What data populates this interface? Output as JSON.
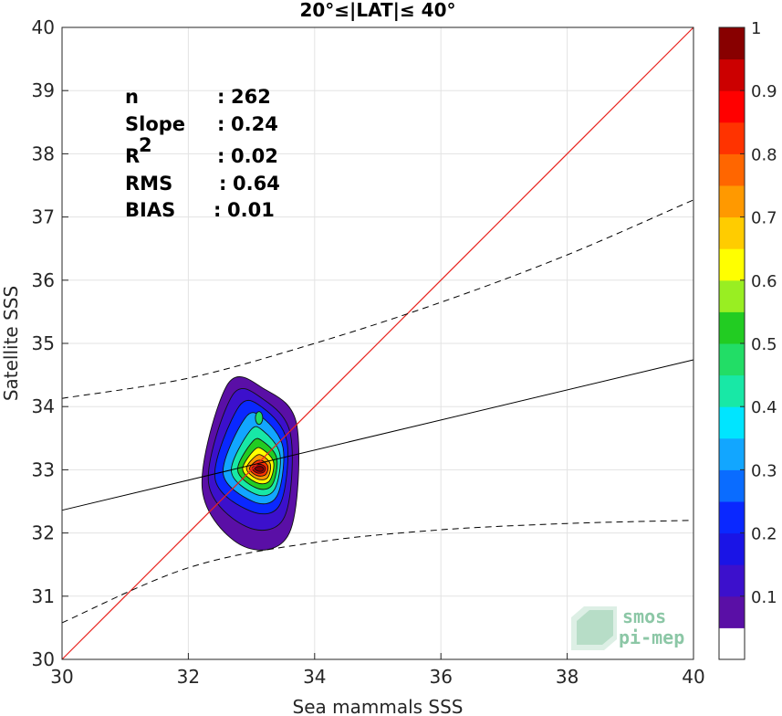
{
  "chart_data": {
    "type": "scatter",
    "title": "20°≤|LAT|≤ 40°",
    "xlabel": "Sea mammals SSS",
    "ylabel": "Satellite SSS",
    "xlim": [
      30,
      40
    ],
    "ylim": [
      30,
      40
    ],
    "xticks": [
      "30",
      "32",
      "34",
      "36",
      "38",
      "40"
    ],
    "yticks": [
      "30",
      "31",
      "32",
      "33",
      "34",
      "35",
      "36",
      "37",
      "38",
      "39",
      "40"
    ],
    "grid": true,
    "stats": [
      {
        "label": "n",
        "sep": ":",
        "value": "262"
      },
      {
        "label": "Slope",
        "sep": ":",
        "value": "0.24"
      },
      {
        "label": "R",
        "sup": "2",
        "sep": ":",
        "value": "0.02"
      },
      {
        "label": "RMS",
        "sep": ":",
        "value": "0.64"
      },
      {
        "label": "BIAS",
        "sep": ":",
        "value": "0.01"
      }
    ],
    "lines": {
      "identity": {
        "x": [
          30,
          40
        ],
        "y": [
          30,
          40
        ],
        "color": "#e8231e"
      },
      "regression": {
        "x": [
          30,
          40
        ],
        "y": [
          32.36,
          34.74
        ],
        "color": "#000000"
      },
      "upper_bound": {
        "x": [
          30,
          32,
          34,
          36,
          38,
          40
        ],
        "y": [
          34.13,
          34.45,
          35.0,
          35.65,
          36.4,
          37.27
        ]
      },
      "lower_bound": {
        "x": [
          30,
          32,
          34,
          36,
          38,
          40
        ],
        "y": [
          30.58,
          31.45,
          31.85,
          32.05,
          32.15,
          32.2
        ]
      }
    },
    "density_contours": {
      "center": [
        33.12,
        33.02
      ],
      "levels": [
        {
          "level": 0.05,
          "x": [
            32.62,
            33.2,
            33.72,
            33.6,
            32.85,
            32.22
          ],
          "y": [
            34.35,
            34.28,
            33.7,
            32.0,
            31.8,
            32.7
          ]
        },
        {
          "level": 0.1,
          "x": [
            32.7,
            33.18,
            33.62,
            33.52,
            32.92,
            32.32
          ],
          "y": [
            34.18,
            34.12,
            33.55,
            32.25,
            32.1,
            32.8
          ]
        },
        {
          "level": 0.2,
          "x": [
            32.8,
            33.18,
            33.56,
            33.45,
            32.98,
            32.42
          ],
          "y": [
            34.0,
            33.98,
            33.45,
            32.45,
            32.35,
            32.88
          ]
        },
        {
          "level": 0.3,
          "x": [
            32.9,
            33.18,
            33.5,
            33.4,
            33.02,
            32.55
          ],
          "y": [
            33.82,
            33.82,
            33.35,
            32.58,
            32.5,
            32.95
          ]
        },
        {
          "level": 0.4,
          "x": [
            32.98,
            33.18,
            33.45,
            33.36,
            33.05,
            32.68
          ],
          "y": [
            33.62,
            33.62,
            33.25,
            32.68,
            32.62,
            32.98
          ]
        },
        {
          "level": 0.5,
          "x": [
            33.02,
            33.18,
            33.4,
            33.32,
            33.06,
            32.78
          ],
          "y": [
            33.45,
            33.45,
            33.18,
            32.75,
            32.72,
            33.0
          ]
        },
        {
          "level": 0.6,
          "x": [
            33.05,
            33.18,
            33.35,
            33.28,
            33.07,
            32.86
          ],
          "y": [
            33.32,
            33.32,
            33.12,
            32.82,
            32.8,
            33.01
          ]
        },
        {
          "level": 0.7,
          "x": [
            33.07,
            33.18,
            33.3,
            33.25,
            33.08,
            32.92
          ],
          "y": [
            33.22,
            33.22,
            33.08,
            32.87,
            32.86,
            33.02
          ]
        },
        {
          "level": 0.8,
          "x": [
            33.08,
            33.18,
            33.26,
            33.22,
            33.08,
            32.97
          ],
          "y": [
            33.14,
            33.14,
            33.05,
            32.92,
            32.91,
            33.02
          ]
        },
        {
          "level": 0.9,
          "x": [
            33.09,
            33.17,
            33.22,
            33.19,
            33.09,
            33.01
          ],
          "y": [
            33.08,
            33.08,
            33.03,
            32.96,
            32.95,
            33.02
          ]
        },
        {
          "level": 0.95,
          "x": [
            33.1,
            33.16,
            33.19,
            33.17,
            33.1,
            33.05
          ],
          "y": [
            33.05,
            33.05,
            33.02,
            32.98,
            32.98,
            33.02
          ]
        }
      ],
      "secondary_peak": {
        "x": 33.12,
        "y": 33.82
      }
    },
    "colorbar": {
      "ticks": [
        "0.1",
        "0.2",
        "0.3",
        "0.4",
        "0.5",
        "0.6",
        "0.7",
        "0.8",
        "0.9",
        "1"
      ],
      "range": [
        0,
        1
      ],
      "bins": [
        {
          "from": 0.0,
          "to": 0.05,
          "color": "#ffffff"
        },
        {
          "from": 0.05,
          "to": 0.1,
          "color": "#5a0fa6"
        },
        {
          "from": 0.1,
          "to": 0.15,
          "color": "#3c10cc"
        },
        {
          "from": 0.15,
          "to": 0.2,
          "color": "#1a14e6"
        },
        {
          "from": 0.2,
          "to": 0.25,
          "color": "#0a28ff"
        },
        {
          "from": 0.25,
          "to": 0.3,
          "color": "#0a6cff"
        },
        {
          "from": 0.3,
          "to": 0.35,
          "color": "#12a6ff"
        },
        {
          "from": 0.35,
          "to": 0.4,
          "color": "#00e5ff"
        },
        {
          "from": 0.4,
          "to": 0.45,
          "color": "#18e8a6"
        },
        {
          "from": 0.45,
          "to": 0.5,
          "color": "#22dd66"
        },
        {
          "from": 0.5,
          "to": 0.55,
          "color": "#22cc22"
        },
        {
          "from": 0.55,
          "to": 0.6,
          "color": "#99ee22"
        },
        {
          "from": 0.6,
          "to": 0.65,
          "color": "#ffff00"
        },
        {
          "from": 0.65,
          "to": 0.7,
          "color": "#ffcc00"
        },
        {
          "from": 0.7,
          "to": 0.75,
          "color": "#ff9900"
        },
        {
          "from": 0.75,
          "to": 0.8,
          "color": "#ff6600"
        },
        {
          "from": 0.8,
          "to": 0.85,
          "color": "#ff3300"
        },
        {
          "from": 0.85,
          "to": 0.9,
          "color": "#ff0000"
        },
        {
          "from": 0.9,
          "to": 0.95,
          "color": "#cc0000"
        },
        {
          "from": 0.95,
          "to": 1.0,
          "color": "#880000"
        }
      ]
    },
    "watermark": {
      "line1": "smos",
      "line2": "pi-mep"
    }
  }
}
